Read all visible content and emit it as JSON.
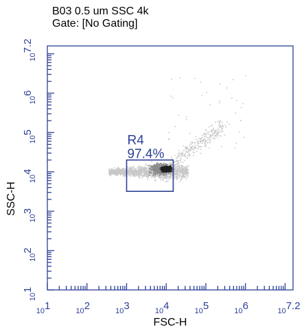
{
  "title_line1": "B03 0.5 um SSC 4k",
  "title_line2": "Gate: [No Gating]",
  "chart_data": {
    "type": "scatter",
    "plot_style": "density dot plot",
    "xlabel": "FSC-H",
    "ylabel": "SSC-H",
    "x_scale": "log",
    "y_scale": "log",
    "xlim": [
      10,
      15848932
    ],
    "ylim": [
      10,
      15848932
    ],
    "x_ticks": [
      {
        "base": "10",
        "exp": "1"
      },
      {
        "base": "10",
        "exp": "2"
      },
      {
        "base": "10",
        "exp": "3"
      },
      {
        "base": "10",
        "exp": "4"
      },
      {
        "base": "10",
        "exp": "5"
      },
      {
        "base": "10",
        "exp": "6"
      },
      {
        "base": "10",
        "exp": "7.2"
      }
    ],
    "y_ticks": [
      {
        "base": "10",
        "exp": "1"
      },
      {
        "base": "10",
        "exp": "2"
      },
      {
        "base": "10",
        "exp": "3"
      },
      {
        "base": "10",
        "exp": "4"
      },
      {
        "base": "10",
        "exp": "5"
      },
      {
        "base": "10",
        "exp": "6"
      },
      {
        "base": "10",
        "exp": "7.2"
      }
    ],
    "gate": {
      "name": "R4",
      "percent": "97.4%",
      "x_range": [
        1000,
        15000
      ],
      "y_range": [
        3200,
        20000
      ]
    },
    "population": {
      "center": [
        10000,
        12000
      ],
      "main_x_range": [
        350,
        35000
      ],
      "main_y_range": [
        3500,
        15000
      ]
    },
    "colors": {
      "axis": "#2b3f96",
      "gate": "#2b3f96",
      "dots_light": "#c8c8c8",
      "dots_mid": "#8a8a8a",
      "dots_dense": "#202020"
    }
  }
}
